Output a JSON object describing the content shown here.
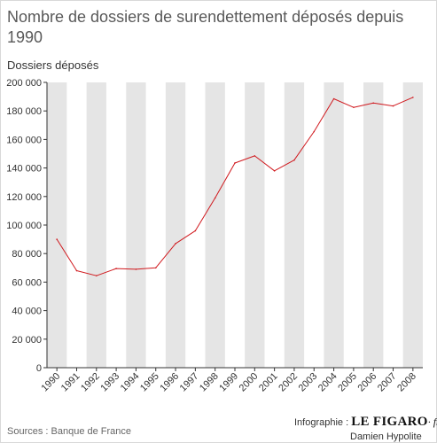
{
  "page": {
    "title": "Nombre de dossiers de surendettement déposés depuis 1990",
    "source": "Sources : Banque de France",
    "credit_label": "Infographie :",
    "logo": "LE FIGARO",
    "logo_suffix": "· fr",
    "author": "Damien Hypolite"
  },
  "chart_data": {
    "type": "line",
    "title": "Nombre de dossiers de surendettement déposés depuis 1990",
    "ylabel": "Dossiers déposés",
    "xlabel": "",
    "categories": [
      "1990",
      "1991",
      "1992",
      "1993",
      "1994",
      "1995",
      "1996",
      "1997",
      "1998",
      "1999",
      "2000",
      "2001",
      "2002",
      "2003",
      "2004",
      "2005",
      "2006",
      "2007",
      "2008"
    ],
    "series": [
      {
        "values": [
          90000,
          68000,
          64500,
          69500,
          69000,
          70000,
          87000,
          96000,
          119000,
          143500,
          148500,
          138000,
          145500,
          165500,
          188500,
          182500,
          185500,
          183500,
          189500
        ]
      }
    ],
    "ylim": [
      0,
      200000
    ],
    "yticks": [
      0,
      20000,
      40000,
      60000,
      80000,
      100000,
      120000,
      140000,
      160000,
      180000,
      200000
    ],
    "ytick_labels": [
      "0",
      "20 000",
      "40 000",
      "60 000",
      "80 000",
      "100 000",
      "120 000",
      "140 000",
      "160 000",
      "180 000",
      "200 000"
    ],
    "line_color": "#d0191e",
    "band_color": "#e5e5e5",
    "grid": false,
    "alternating_bands": true
  }
}
